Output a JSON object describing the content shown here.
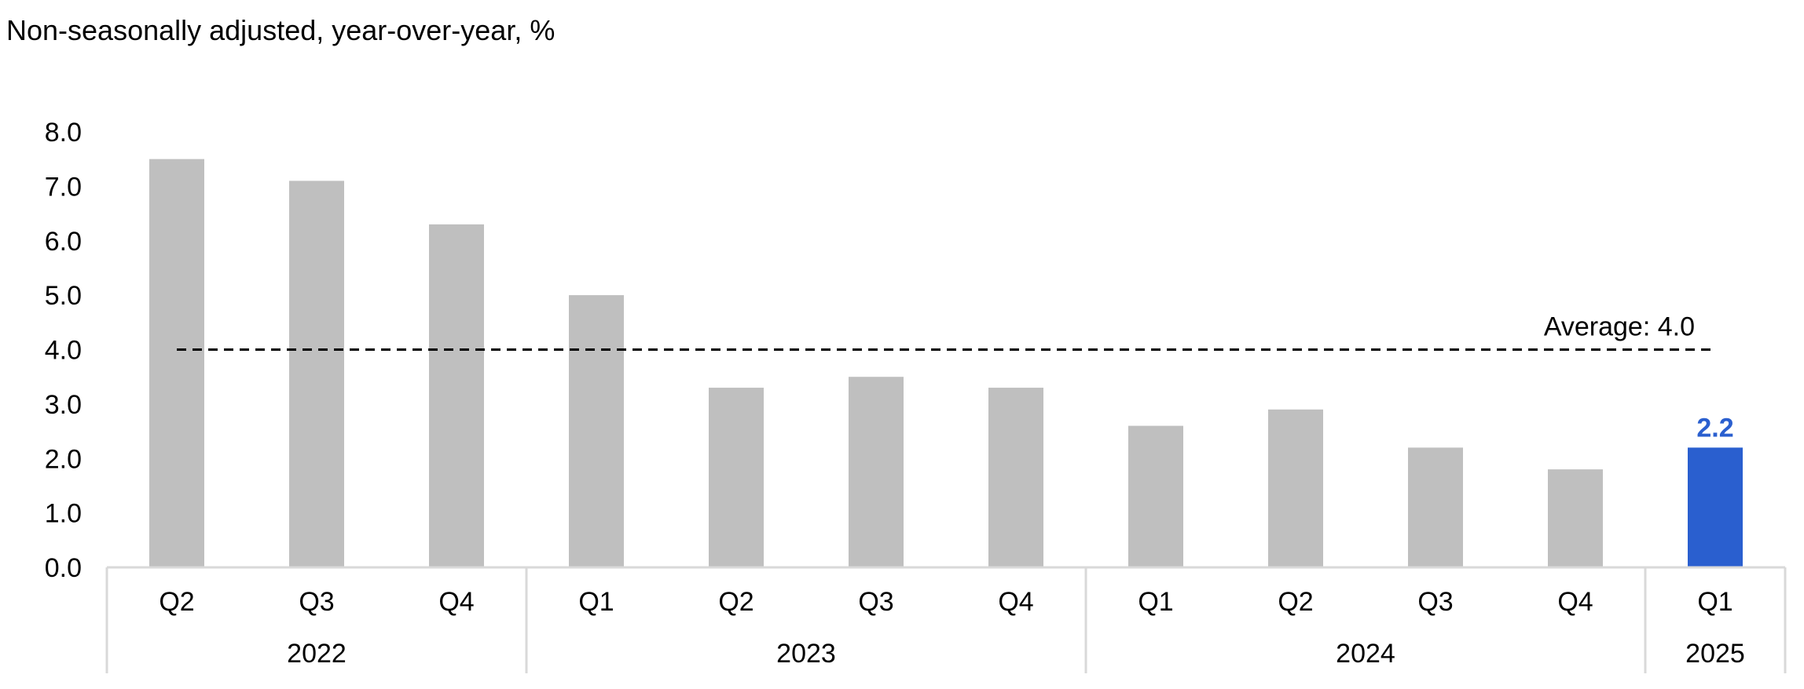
{
  "chart_data": {
    "type": "bar",
    "subtitle": "Non-seasonally adjusted, year-over-year, %",
    "categories": [
      "Q2",
      "Q3",
      "Q4",
      "Q1",
      "Q2",
      "Q3",
      "Q4",
      "Q1",
      "Q2",
      "Q3",
      "Q4",
      "Q1"
    ],
    "groups": [
      {
        "label": "2022",
        "span": 3
      },
      {
        "label": "2023",
        "span": 4
      },
      {
        "label": "2024",
        "span": 4
      },
      {
        "label": "2025",
        "span": 1
      }
    ],
    "values": [
      7.5,
      7.1,
      6.3,
      5.0,
      3.3,
      3.5,
      3.3,
      2.6,
      2.9,
      2.2,
      1.8,
      2.2
    ],
    "highlight_index": 11,
    "highlight_label": "2.2",
    "ylim": [
      0,
      8
    ],
    "yticks": [
      "0.0",
      "1.0",
      "2.0",
      "3.0",
      "4.0",
      "5.0",
      "6.0",
      "7.0",
      "8.0"
    ],
    "reference_line": {
      "value": 4.0,
      "label": "Average: 4.0",
      "style": "dashed"
    },
    "grid": false,
    "colors": {
      "bar": "#bfbfbf",
      "highlight": "#2a5fcf",
      "highlight_label": "#2a5fcf",
      "axis": "#d9d9d9",
      "reference_line": "#000000"
    }
  }
}
